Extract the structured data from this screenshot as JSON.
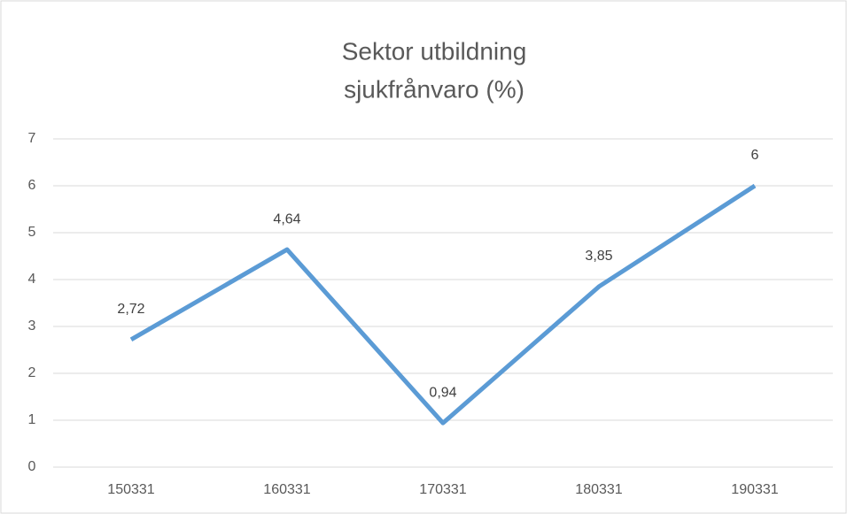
{
  "chart_data": {
    "type": "line",
    "title": [
      "Sektor utbildning",
      "sjukfrånvaro (%)"
    ],
    "categories": [
      "150331",
      "160331",
      "170331",
      "180331",
      "190331"
    ],
    "series": [
      {
        "name": "sjukfrånvaro",
        "color": "#5b9bd5",
        "values": [
          2.72,
          4.64,
          0.94,
          3.85,
          6
        ],
        "value_labels": [
          "2,72",
          "4,64",
          "0,94",
          "3,85",
          "6"
        ]
      }
    ],
    "ylim": [
      0,
      7
    ],
    "yticks": [
      0,
      1,
      2,
      3,
      4,
      5,
      6,
      7
    ],
    "grid": true
  }
}
